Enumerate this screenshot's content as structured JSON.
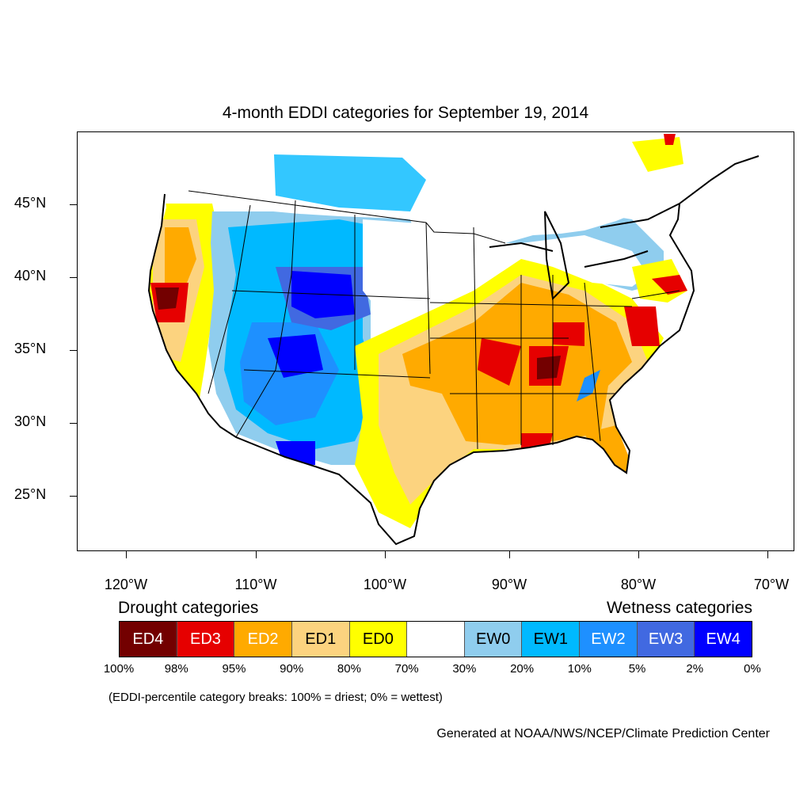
{
  "title": "4-month EDDI categories for September 19, 2014",
  "lat_labels": [
    "45°N",
    "40°N",
    "35°N",
    "30°N",
    "25°N"
  ],
  "lon_labels": [
    "120°W",
    "110°W",
    "100°W",
    "90°W",
    "80°W",
    "70°W"
  ],
  "legend": {
    "drought_heading": "Drought categories",
    "wetness_heading": "Wetness categories",
    "categories": [
      {
        "label": "ED4",
        "color": "#730000",
        "text_color": "#ffffff"
      },
      {
        "label": "ED3",
        "color": "#e60000",
        "text_color": "#ffffff"
      },
      {
        "label": "ED2",
        "color": "#ffaa00",
        "text_color": "#ffffff"
      },
      {
        "label": "ED1",
        "color": "#fcd37f",
        "text_color": "#000000"
      },
      {
        "label": "ED0",
        "color": "#ffff00",
        "text_color": "#000000"
      },
      {
        "label": "",
        "color": "#ffffff",
        "text_color": "#000000"
      },
      {
        "label": "EW0",
        "color": "#8fcdee",
        "text_color": "#000000"
      },
      {
        "label": "EW1",
        "color": "#00b9ff",
        "text_color": "#000000"
      },
      {
        "label": "EW2",
        "color": "#1e90ff",
        "text_color": "#ffffff"
      },
      {
        "label": "EW3",
        "color": "#4169e1",
        "text_color": "#ffffff"
      },
      {
        "label": "EW4",
        "color": "#0000ff",
        "text_color": "#ffffff"
      }
    ],
    "percentiles": [
      "100%",
      "98%",
      "95%",
      "90%",
      "80%",
      "70%",
      "30%",
      "20%",
      "10%",
      "5%",
      "2%",
      "0%"
    ]
  },
  "note": "(EDDI-percentile category breaks: 100% = driest; 0% = wettest)",
  "credit": "Generated at NOAA/NWS/NCEP/Climate Prediction Center"
}
